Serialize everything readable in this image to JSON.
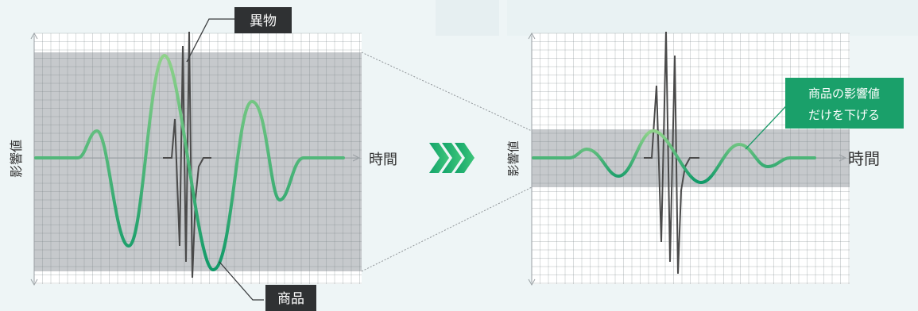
{
  "labels": {
    "foreign_object": "異物",
    "product": "商品",
    "time_left": "時間",
    "time_right": "時間",
    "influence_left": "影響値",
    "influence_right": "影響値",
    "callout_line1": "商品の影響値",
    "callout_line2": "だけを下げる"
  },
  "colors": {
    "background": "#eef5f6",
    "wave_green": "#16a06a",
    "wave_green_light": "#8fd28a",
    "spike": "#4a4a4a",
    "band": "#c6c9cc",
    "grid": "#d3d6d8",
    "label_bg": "#2f3133",
    "callout_bg": "#1aa06a",
    "arrow_green": "#17b26a"
  },
  "icons": {
    "transition": "triple-chevron-right-icon"
  }
}
